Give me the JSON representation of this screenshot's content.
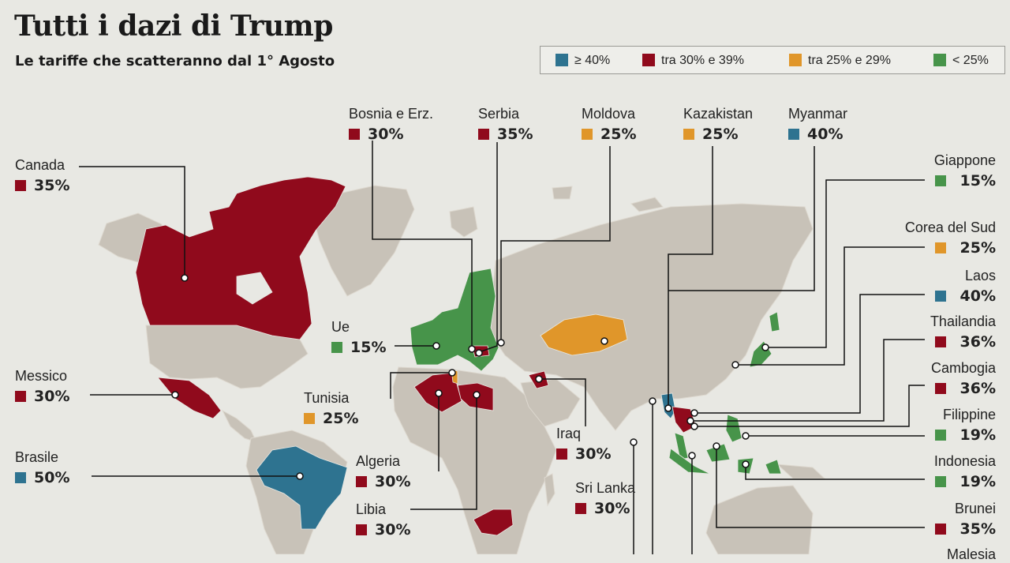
{
  "title": "Tutti i dazi di Trump",
  "subtitle": "Le tariffe che scatteranno dal 1° Agosto",
  "colors": {
    "blue": "#2e7390",
    "red": "#900a1c",
    "orange": "#e0962a",
    "green": "#47944a",
    "land": "#c8c2b8",
    "background": "#e8e8e3"
  },
  "legend": [
    {
      "label": "≥ 40%",
      "color": "#2e7390"
    },
    {
      "label": "tra 30% e 39%",
      "color": "#900a1c"
    },
    {
      "label": "tra 25% e 29%",
      "color": "#e0962a"
    },
    {
      "label": "< 25%",
      "color": "#47944a"
    }
  ],
  "countries": [
    {
      "id": "canada",
      "name": "Canada",
      "tariff": "35%",
      "color": "#900a1c"
    },
    {
      "id": "messico",
      "name": "Messico",
      "tariff": "30%",
      "color": "#900a1c"
    },
    {
      "id": "brasile",
      "name": "Brasile",
      "tariff": "50%",
      "color": "#2e7390"
    },
    {
      "id": "bosnia",
      "name": "Bosnia e Erz.",
      "tariff": "30%",
      "color": "#900a1c"
    },
    {
      "id": "serbia",
      "name": "Serbia",
      "tariff": "35%",
      "color": "#900a1c"
    },
    {
      "id": "moldova",
      "name": "Moldova",
      "tariff": "25%",
      "color": "#e0962a"
    },
    {
      "id": "kazakistan",
      "name": "Kazakistan",
      "tariff": "25%",
      "color": "#e0962a"
    },
    {
      "id": "myanmar",
      "name": "Myanmar",
      "tariff": "40%",
      "color": "#2e7390"
    },
    {
      "id": "ue",
      "name": "Ue",
      "tariff": "15%",
      "color": "#47944a"
    },
    {
      "id": "tunisia",
      "name": "Tunisia",
      "tariff": "25%",
      "color": "#e0962a"
    },
    {
      "id": "algeria",
      "name": "Algeria",
      "tariff": "30%",
      "color": "#900a1c"
    },
    {
      "id": "libia",
      "name": "Libia",
      "tariff": "30%",
      "color": "#900a1c"
    },
    {
      "id": "iraq",
      "name": "Iraq",
      "tariff": "30%",
      "color": "#900a1c"
    },
    {
      "id": "srilanka",
      "name": "Sri Lanka",
      "tariff": "30%",
      "color": "#900a1c"
    },
    {
      "id": "giappone",
      "name": "Giappone",
      "tariff": "15%",
      "color": "#47944a"
    },
    {
      "id": "corea",
      "name": "Corea del Sud",
      "tariff": "25%",
      "color": "#e0962a"
    },
    {
      "id": "laos",
      "name": "Laos",
      "tariff": "40%",
      "color": "#2e7390"
    },
    {
      "id": "thailandia",
      "name": "Thailandia",
      "tariff": "36%",
      "color": "#900a1c"
    },
    {
      "id": "cambogia",
      "name": "Cambogia",
      "tariff": "36%",
      "color": "#900a1c"
    },
    {
      "id": "filippine",
      "name": "Filippine",
      "tariff": "19%",
      "color": "#47944a"
    },
    {
      "id": "indonesia",
      "name": "Indonesia",
      "tariff": "19%",
      "color": "#47944a"
    },
    {
      "id": "brunei",
      "name": "Brunei",
      "tariff": "35%",
      "color": "#900a1c"
    },
    {
      "id": "malesia",
      "name": "Malesia",
      "tariff": "",
      "color": ""
    }
  ]
}
